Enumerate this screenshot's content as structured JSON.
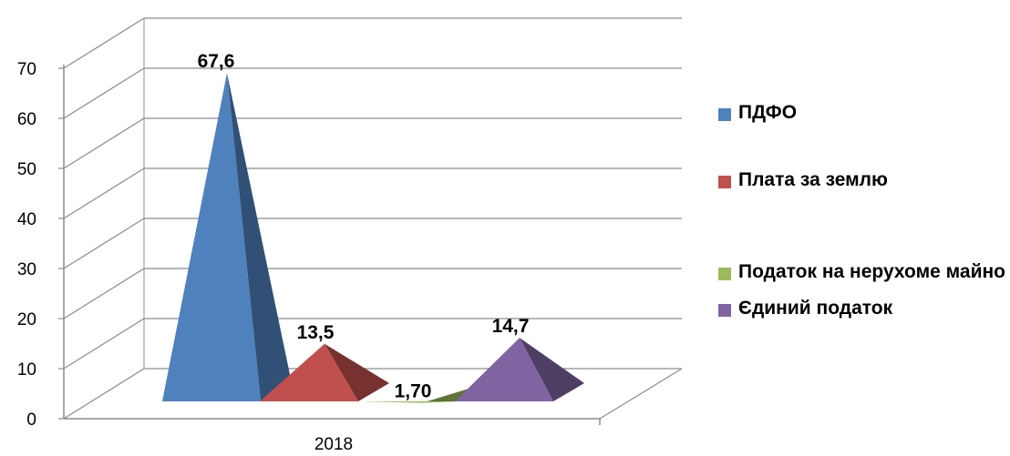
{
  "chart_data": {
    "type": "bar",
    "shape": "3d-pyramid",
    "categories": [
      "2018"
    ],
    "ylim": [
      0,
      70
    ],
    "ytick_step": 10,
    "yticks": [
      "0",
      "10",
      "20",
      "30",
      "40",
      "50",
      "60",
      "70"
    ],
    "grid": true,
    "legend_position": "right",
    "series": [
      {
        "name": "ПДФО",
        "value": 67.6,
        "label": "67,6",
        "color": "#4F81BD"
      },
      {
        "name": "Плата за землю",
        "value": 13.5,
        "label": "13,5",
        "color": "#C0504D"
      },
      {
        "name": "Податок на нерухоме майно",
        "value": 1.7,
        "label": "1,70",
        "color": "#9BBB59"
      },
      {
        "name": "Єдиний податок",
        "value": 14.7,
        "label": "14,7",
        "color": "#8064A2"
      }
    ]
  }
}
